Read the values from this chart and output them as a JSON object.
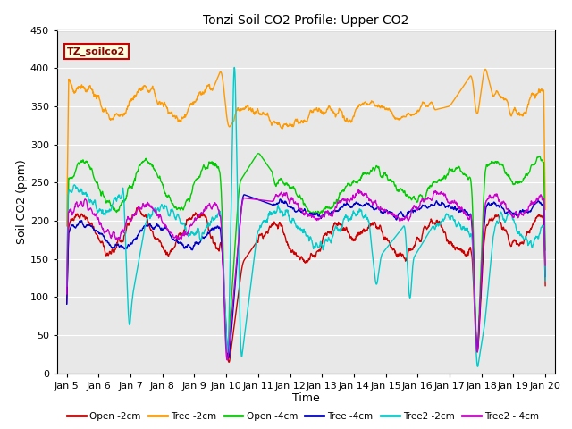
{
  "title": "Tonzi Soil CO2 Profile: Upper CO2",
  "xlabel": "Time",
  "ylabel": "Soil CO2 (ppm)",
  "ylim": [
    0,
    450
  ],
  "xlim_days": [
    4.7,
    20.3
  ],
  "xtick_labels": [
    "Jan 5",
    "Jan 6",
    "Jan 7",
    "Jan 8",
    "Jan 9",
    "Jan 10",
    "Jan 11",
    "Jan 12",
    "Jan 13",
    "Jan 14",
    "Jan 15",
    "Jan 16",
    "Jan 17",
    "Jan 18",
    "Jan 19",
    "Jan 20"
  ],
  "xtick_positions": [
    5,
    6,
    7,
    8,
    9,
    10,
    11,
    12,
    13,
    14,
    15,
    16,
    17,
    18,
    19,
    20
  ],
  "legend_label": "TZ_soilco2",
  "series_colors": {
    "open_2cm": "#cc0000",
    "tree_2cm": "#ff9900",
    "open_4cm": "#00cc00",
    "tree_4cm": "#0000cc",
    "tree2_2cm": "#00cccc",
    "tree2_4cm": "#cc00cc"
  },
  "series_labels": [
    "Open -2cm",
    "Tree -2cm",
    "Open -4cm",
    "Tree -4cm",
    "Tree2 -2cm",
    "Tree2 - 4cm"
  ],
  "plot_bg_color": "#e8e8e8",
  "grid_color": "#ffffff",
  "n_points": 1500
}
